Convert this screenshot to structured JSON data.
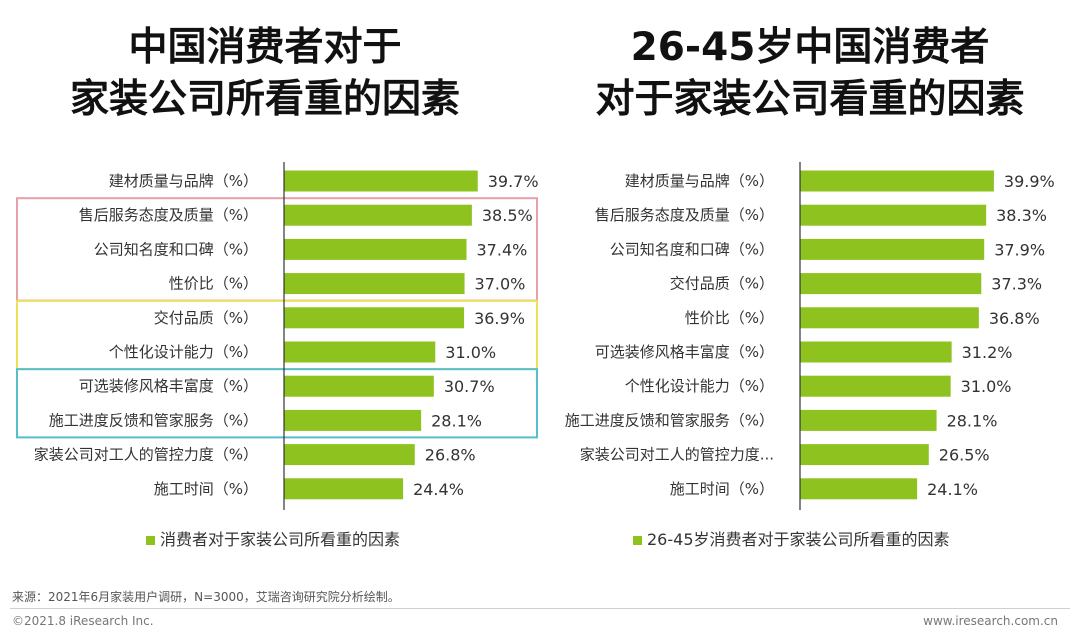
{
  "colors": {
    "bar": "#8dc21f",
    "axis": "#333333",
    "group_red": "#e6a0a8",
    "group_yellow": "#ece05a",
    "group_cyan": "#55bfcc"
  },
  "chart_data": [
    {
      "type": "bar",
      "orientation": "horizontal",
      "title_lines": [
        "中国消费者对于",
        "家装公司所看重的因素"
      ],
      "categories": [
        "建材质量与品牌（%）",
        "售后服务态度及质量（%）",
        "公司知名度和口碑（%）",
        "性价比（%）",
        "交付品质（%）",
        "个性化设计能力（%）",
        "可选装修风格丰富度（%）",
        "施工进度反馈和管家服务（%）",
        "家装公司对工人的管控力度（%）",
        "施工时间（%）"
      ],
      "values": [
        39.7,
        38.5,
        37.4,
        37.0,
        36.9,
        31.0,
        30.7,
        28.1,
        26.8,
        24.4
      ],
      "value_labels": [
        "39.7%",
        "38.5%",
        "37.4%",
        "37.0%",
        "36.9%",
        "31.0%",
        "30.7%",
        "28.1%",
        "26.8%",
        "24.4%"
      ],
      "legend": "消费者对于家装公司所看重的因素",
      "groups": [
        {
          "color": "red",
          "rows": [
            1,
            3
          ]
        },
        {
          "color": "yellow",
          "rows": [
            4,
            5
          ]
        },
        {
          "color": "cyan",
          "rows": [
            6,
            7
          ]
        }
      ]
    },
    {
      "type": "bar",
      "orientation": "horizontal",
      "title_lines": [
        "26-45岁中国消费者",
        "对于家装公司看重的因素"
      ],
      "categories": [
        "建材质量与品牌（%）",
        "售后服务态度及质量（%）",
        "公司知名度和口碑（%）",
        "交付品质（%）",
        "性价比（%）",
        "可选装修风格丰富度（%）",
        "个性化设计能力（%）",
        "施工进度反馈和管家服务（%）",
        "家装公司对工人的管控力度...",
        "施工时间（%）"
      ],
      "values": [
        39.9,
        38.3,
        37.9,
        37.3,
        36.8,
        31.2,
        31.0,
        28.1,
        26.5,
        24.1
      ],
      "value_labels": [
        "39.9%",
        "38.3%",
        "37.9%",
        "37.3%",
        "36.8%",
        "31.2%",
        "31.0%",
        "28.1%",
        "26.5%",
        "24.1%"
      ],
      "legend": "26-45岁消费者对于家装公司所看重的因素",
      "groups": []
    }
  ],
  "source": "来源：2021年6月家装用户调研，N=3000，艾瑞咨询研究院分析绘制。",
  "copyright": "©2021.8 iResearch Inc.",
  "website": "www.iresearch.com.cn"
}
